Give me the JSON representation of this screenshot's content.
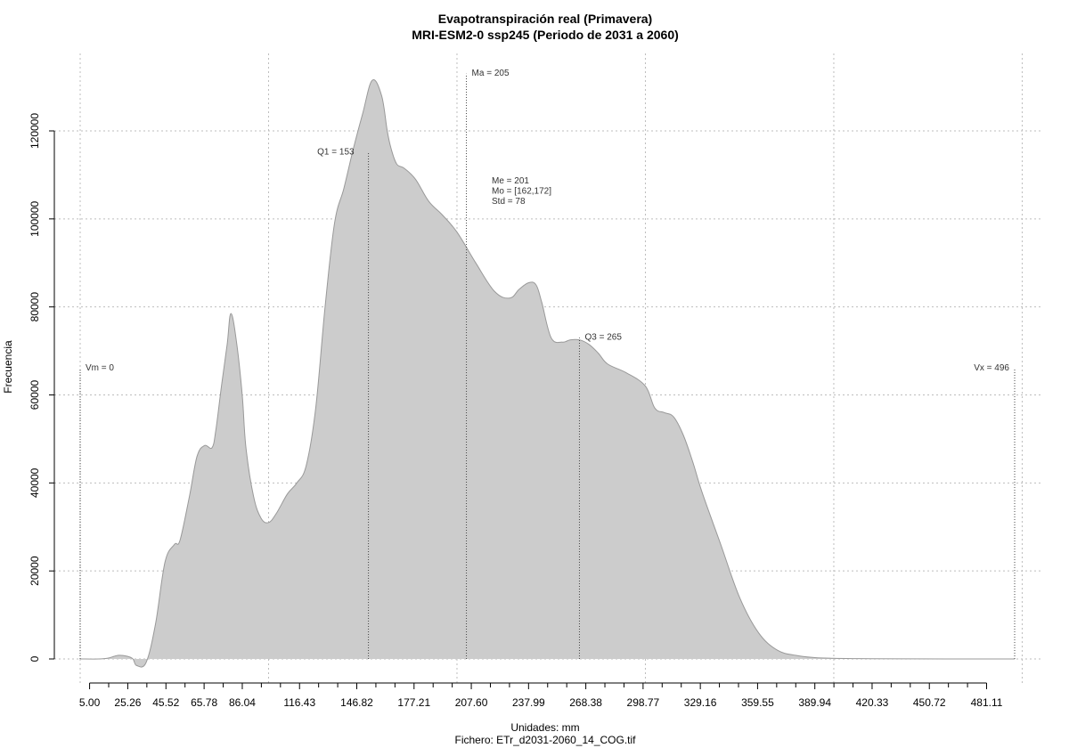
{
  "chart_data": {
    "type": "area",
    "title": "Evapotranspiración real (Primavera)",
    "subtitle": "MRI-ESM2-0 ssp245 (Periodo de 2031 a 2060)",
    "xlabel": "Unidades: mm",
    "ylabel": "Frecuencia",
    "footer": "Fichero: ETr_d2031-2060_14_COG.tif",
    "xlim": [
      0,
      496
    ],
    "ylim": [
      0,
      132000
    ],
    "x_tick_labels": [
      "5.00",
      "25.26",
      "45.52",
      "65.78",
      "86.04",
      "116.43",
      "146.82",
      "177.21",
      "207.60",
      "237.99",
      "268.38",
      "298.77",
      "329.16",
      "359.55",
      "389.94",
      "420.33",
      "450.72",
      "481.11"
    ],
    "x_tick_values": [
      5.0,
      25.26,
      45.52,
      65.78,
      86.04,
      116.43,
      146.82,
      177.21,
      207.6,
      237.99,
      268.38,
      298.77,
      329.16,
      359.55,
      389.94,
      420.33,
      450.72,
      481.11
    ],
    "minor_tick_values": [
      15.13,
      35.39,
      55.65,
      75.91,
      96.17,
      106.3,
      126.56,
      136.69,
      156.95,
      167.08,
      187.34,
      197.47,
      217.73,
      227.86,
      248.12,
      258.25,
      278.51,
      288.64,
      308.9,
      319.03,
      339.29,
      349.42,
      369.68,
      379.81,
      400.07,
      410.2,
      430.46,
      440.59,
      460.85,
      470.98
    ],
    "y_tick_labels": [
      "0",
      "20000",
      "40000",
      "60000",
      "80000",
      "100000",
      "120000"
    ],
    "y_tick_values": [
      0,
      20000,
      40000,
      60000,
      80000,
      100000,
      120000
    ],
    "grid_x_values": [
      0,
      100,
      200,
      300,
      400,
      500
    ],
    "grid": true,
    "fill_color": "#cccccc",
    "line_color": "#999999",
    "x": [
      0,
      10,
      15,
      20,
      25,
      28,
      30,
      35,
      40,
      45,
      50,
      53,
      58,
      62,
      66,
      70,
      72,
      75,
      78,
      80,
      83,
      86,
      88,
      92,
      96,
      100,
      104,
      110,
      115,
      120,
      125,
      130,
      135,
      140,
      145,
      150,
      155,
      160,
      163,
      165,
      168,
      172,
      178,
      185,
      192,
      200,
      210,
      220,
      228,
      233,
      238,
      242,
      245,
      250,
      256,
      260,
      265,
      270,
      275,
      280,
      290,
      300,
      305,
      310,
      315,
      320,
      325,
      330,
      340,
      350,
      360,
      370,
      380,
      390,
      400,
      410,
      420,
      440,
      470,
      496
    ],
    "y": [
      0,
      0,
      200,
      800,
      600,
      0,
      -1500,
      -800,
      8000,
      22000,
      26000,
      27000,
      37000,
      46000,
      48500,
      48000,
      52000,
      62000,
      71500,
      78500,
      72000,
      60000,
      48000,
      37000,
      32000,
      31000,
      33000,
      37500,
      40000,
      44000,
      57000,
      80000,
      99000,
      107000,
      116000,
      124000,
      131500,
      128000,
      120000,
      116000,
      112500,
      111500,
      109000,
      104000,
      101000,
      97000,
      90000,
      83500,
      82000,
      84000,
      85500,
      85000,
      81000,
      73000,
      72000,
      72500,
      72500,
      71500,
      69500,
      67000,
      65000,
      62000,
      57000,
      56000,
      55000,
      51000,
      45000,
      38000,
      26000,
      14000,
      6000,
      2000,
      800,
      300,
      150,
      80,
      40,
      20,
      5,
      0
    ],
    "markers": [
      {
        "label": "Vm = 0",
        "x": 0,
        "y_top": 66000
      },
      {
        "label": "Q1 = 153",
        "x": 153,
        "y_top": 115000
      },
      {
        "label": "Ma = 205",
        "x": 205,
        "y_top": 133000
      },
      {
        "label": "Q3 = 265",
        "x": 265,
        "y_top": 73000
      },
      {
        "label": "Vx = 496",
        "x": 496,
        "y_top": 66000
      }
    ],
    "stats": [
      "Me = 201",
      "Mo = [162,172]",
      "Std = 78"
    ]
  }
}
